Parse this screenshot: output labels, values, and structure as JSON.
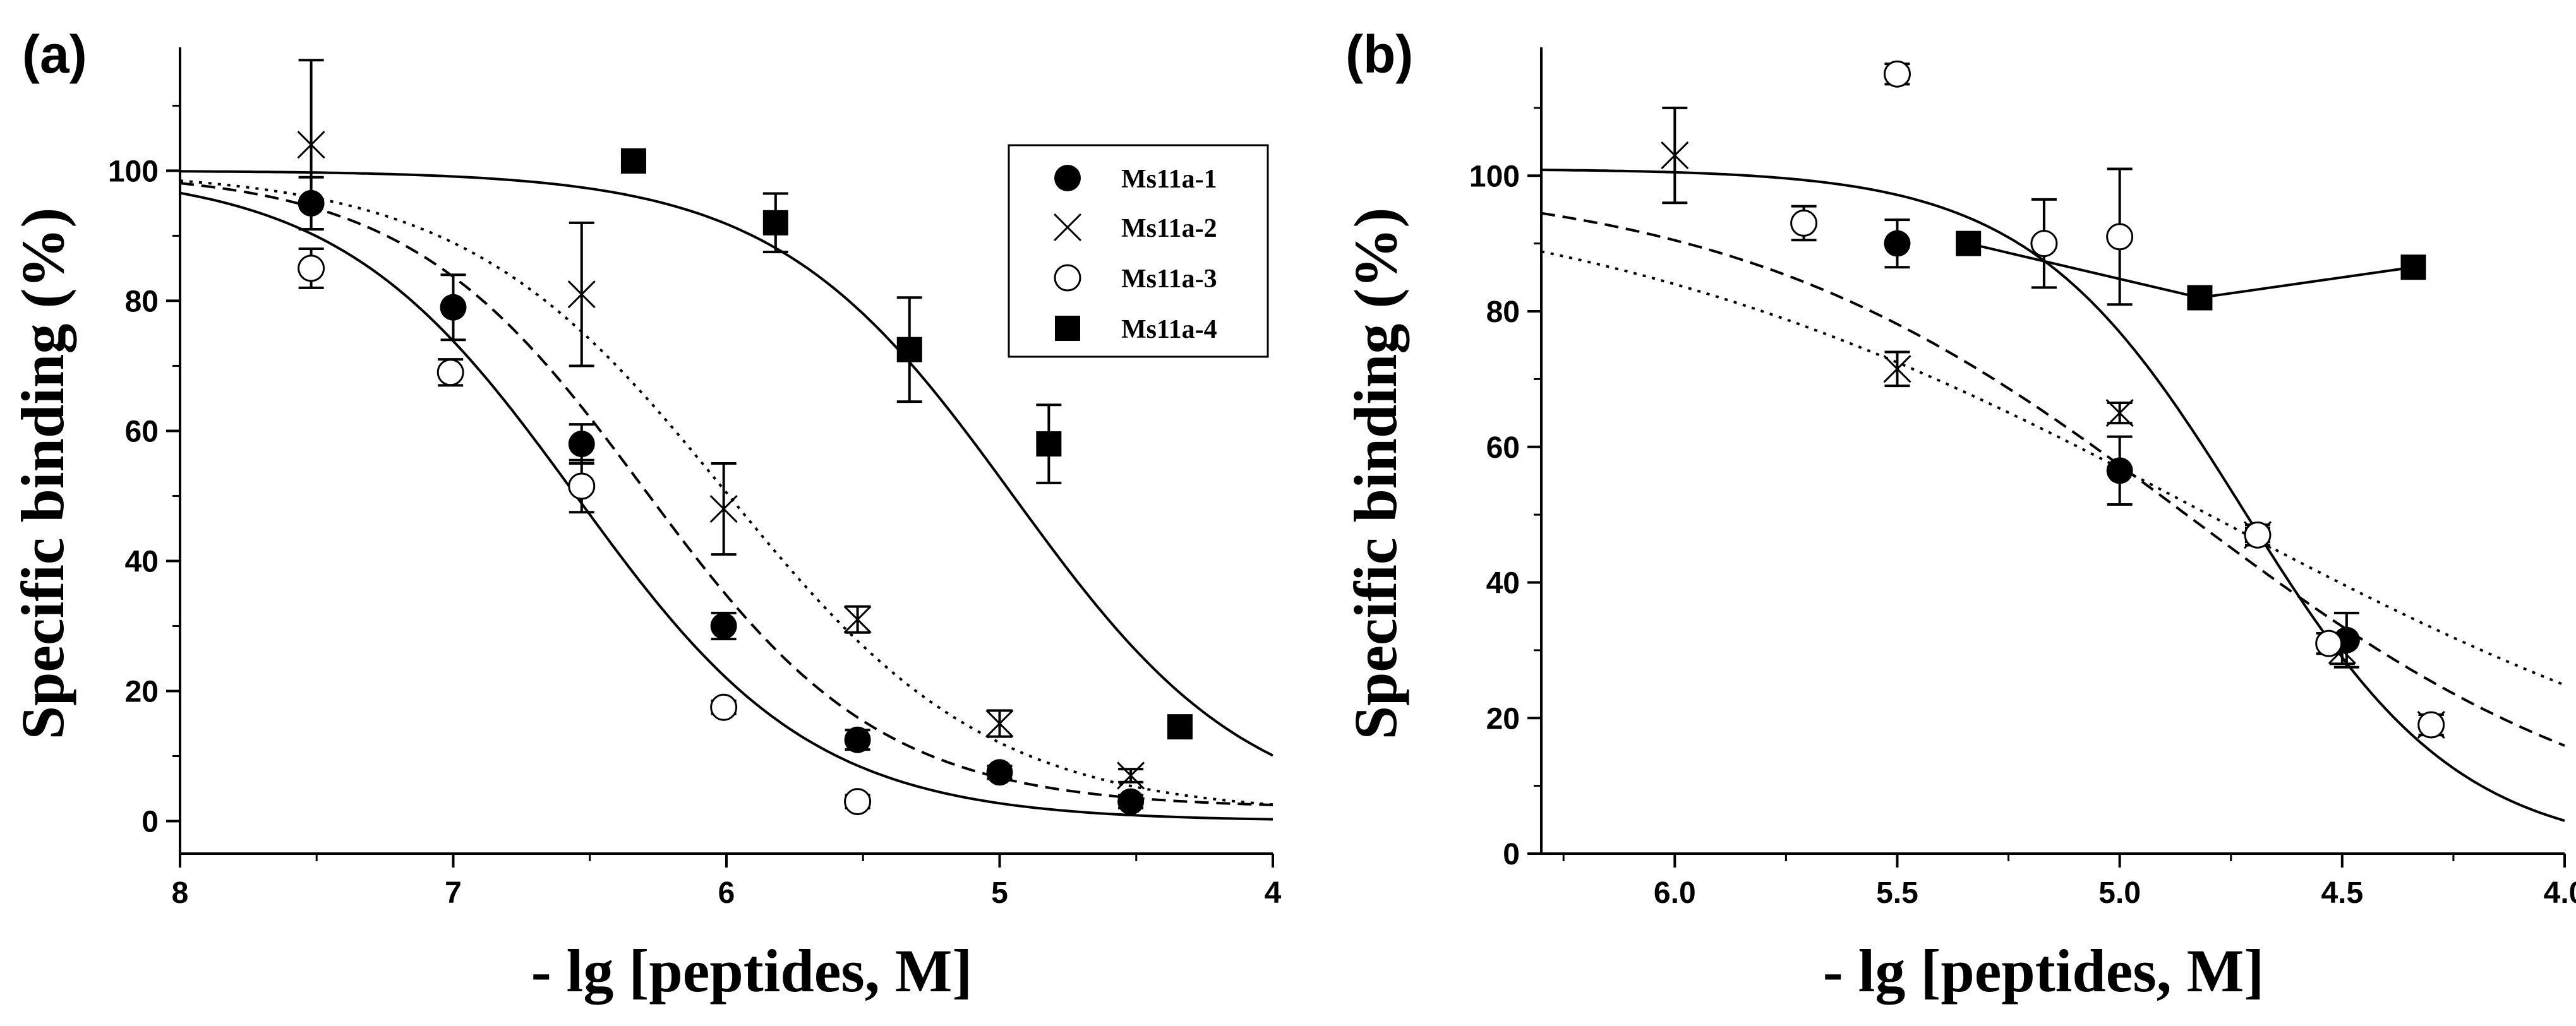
{
  "chart_data": [
    {
      "panel": "(a)",
      "type": "scatter",
      "xlabel": "- lg [peptides, M]",
      "ylabel": "Specific binding (%)",
      "xlim": [
        8,
        4
      ],
      "ylim": [
        -5,
        118
      ],
      "x_reversed": true,
      "x_ticks": [
        8,
        7,
        6,
        5,
        4
      ],
      "x_tick_labels": [
        "8",
        "7",
        "6",
        "5",
        "4"
      ],
      "y_ticks": [
        0,
        20,
        40,
        60,
        80,
        100
      ],
      "y_tick_labels": [
        "0",
        "20",
        "40",
        "60",
        "80",
        "100"
      ],
      "legend": {
        "placement": "top-right"
      },
      "series": [
        {
          "name": "Ms11a-1",
          "marker": "filled-circle",
          "x": [
            7.52,
            7.0,
            6.53,
            6.01,
            5.52,
            5.0,
            4.52
          ],
          "y": [
            95,
            79,
            58,
            30,
            12.5,
            7.5,
            3
          ],
          "err": [
            4,
            5,
            3,
            2,
            1.5,
            1,
            1
          ],
          "fit": {
            "style": "dashed",
            "top": 100,
            "bottom": 2,
            "center": 6.3,
            "hill": 1.0
          }
        },
        {
          "name": "Ms11a-2",
          "marker": "cross",
          "x": [
            7.52,
            6.53,
            6.01,
            5.52,
            5.0,
            4.52
          ],
          "y": [
            104,
            81,
            48,
            31,
            15,
            7
          ],
          "err": [
            13,
            11,
            7,
            2,
            2,
            1
          ],
          "fit": {
            "style": "dotted",
            "top": 100,
            "bottom": 1,
            "center": 6.0,
            "hill": 0.9
          }
        },
        {
          "name": "Ms11a-3",
          "marker": "open-circle",
          "x": [
            7.52,
            7.01,
            6.53,
            6.01,
            5.52
          ],
          "y": [
            85,
            69,
            51.5,
            17.5,
            3
          ],
          "err": [
            3,
            2,
            4,
            1,
            1
          ],
          "fit": {
            "style": "solid",
            "top": 100,
            "bottom": 0,
            "center": 6.55,
            "hill": 1.0
          }
        },
        {
          "name": "Ms11a-4",
          "marker": "filled-square",
          "x": [
            6.34,
            5.82,
            5.33,
            4.82,
            4.34
          ],
          "y": [
            101.5,
            92,
            72.5,
            58,
            14.5
          ],
          "err": [
            1,
            4.5,
            8,
            6,
            1
          ],
          "fit": {
            "style": "solid",
            "top": 100,
            "bottom": 0,
            "center": 4.95,
            "hill": 1.0
          }
        }
      ]
    },
    {
      "panel": "(b)",
      "type": "scatter",
      "xlabel": "- lg [peptides, M]",
      "ylabel": "Specific binding (%)",
      "xlim": [
        6.3,
        4.0
      ],
      "ylim": [
        0,
        118
      ],
      "x_reversed": true,
      "x_ticks": [
        6.0,
        5.5,
        5.0,
        4.5,
        4.0
      ],
      "x_tick_labels": [
        "6.0",
        "5.5",
        "5.0",
        "4.5",
        "4.0"
      ],
      "y_ticks": [
        0,
        20,
        40,
        60,
        80,
        100
      ],
      "y_tick_labels": [
        "0",
        "20",
        "40",
        "60",
        "80",
        "100"
      ],
      "series": [
        {
          "name": "Ms11a-1",
          "marker": "filled-circle",
          "x": [
            5.5,
            5.0,
            4.69,
            4.49
          ],
          "y": [
            90,
            56.5,
            47,
            31.5
          ],
          "err": [
            3.5,
            5,
            1.5,
            4
          ],
          "fit": {
            "style": "dashed",
            "top": 100,
            "bottom": 0,
            "center": 4.85,
            "hill": 0.85
          }
        },
        {
          "name": "Ms11a-2",
          "marker": "cross",
          "x": [
            6.0,
            5.5,
            5.0,
            4.69,
            4.5,
            4.3
          ],
          "y": [
            103,
            71.5,
            65,
            47,
            30,
            19
          ],
          "err": [
            7,
            2.5,
            1.5,
            1.5,
            2,
            1.5
          ],
          "fit": {
            "style": "dotted",
            "top": 100,
            "bottom": 0,
            "center": 4.8,
            "hill": 0.6
          }
        },
        {
          "name": "Ms11a-3",
          "marker": "open-circle",
          "x": [
            5.71,
            5.5,
            5.17,
            5.0,
            4.69,
            4.53,
            4.3
          ],
          "y": [
            93,
            115,
            90,
            91,
            47,
            31,
            19
          ],
          "err": [
            2.5,
            1.5,
            6.5,
            10,
            1,
            1.5,
            1.5
          ],
          "fit": {
            "style": "solid",
            "top": 101,
            "bottom": 0,
            "center": 4.72,
            "hill": 1.8
          }
        },
        {
          "name": "Ms11a-4",
          "marker": "filled-square",
          "x": [
            5.34,
            4.82,
            4.34
          ],
          "y": [
            90,
            82,
            86.5
          ],
          "err": [
            0,
            0,
            0
          ],
          "connected": true
        }
      ]
    }
  ]
}
